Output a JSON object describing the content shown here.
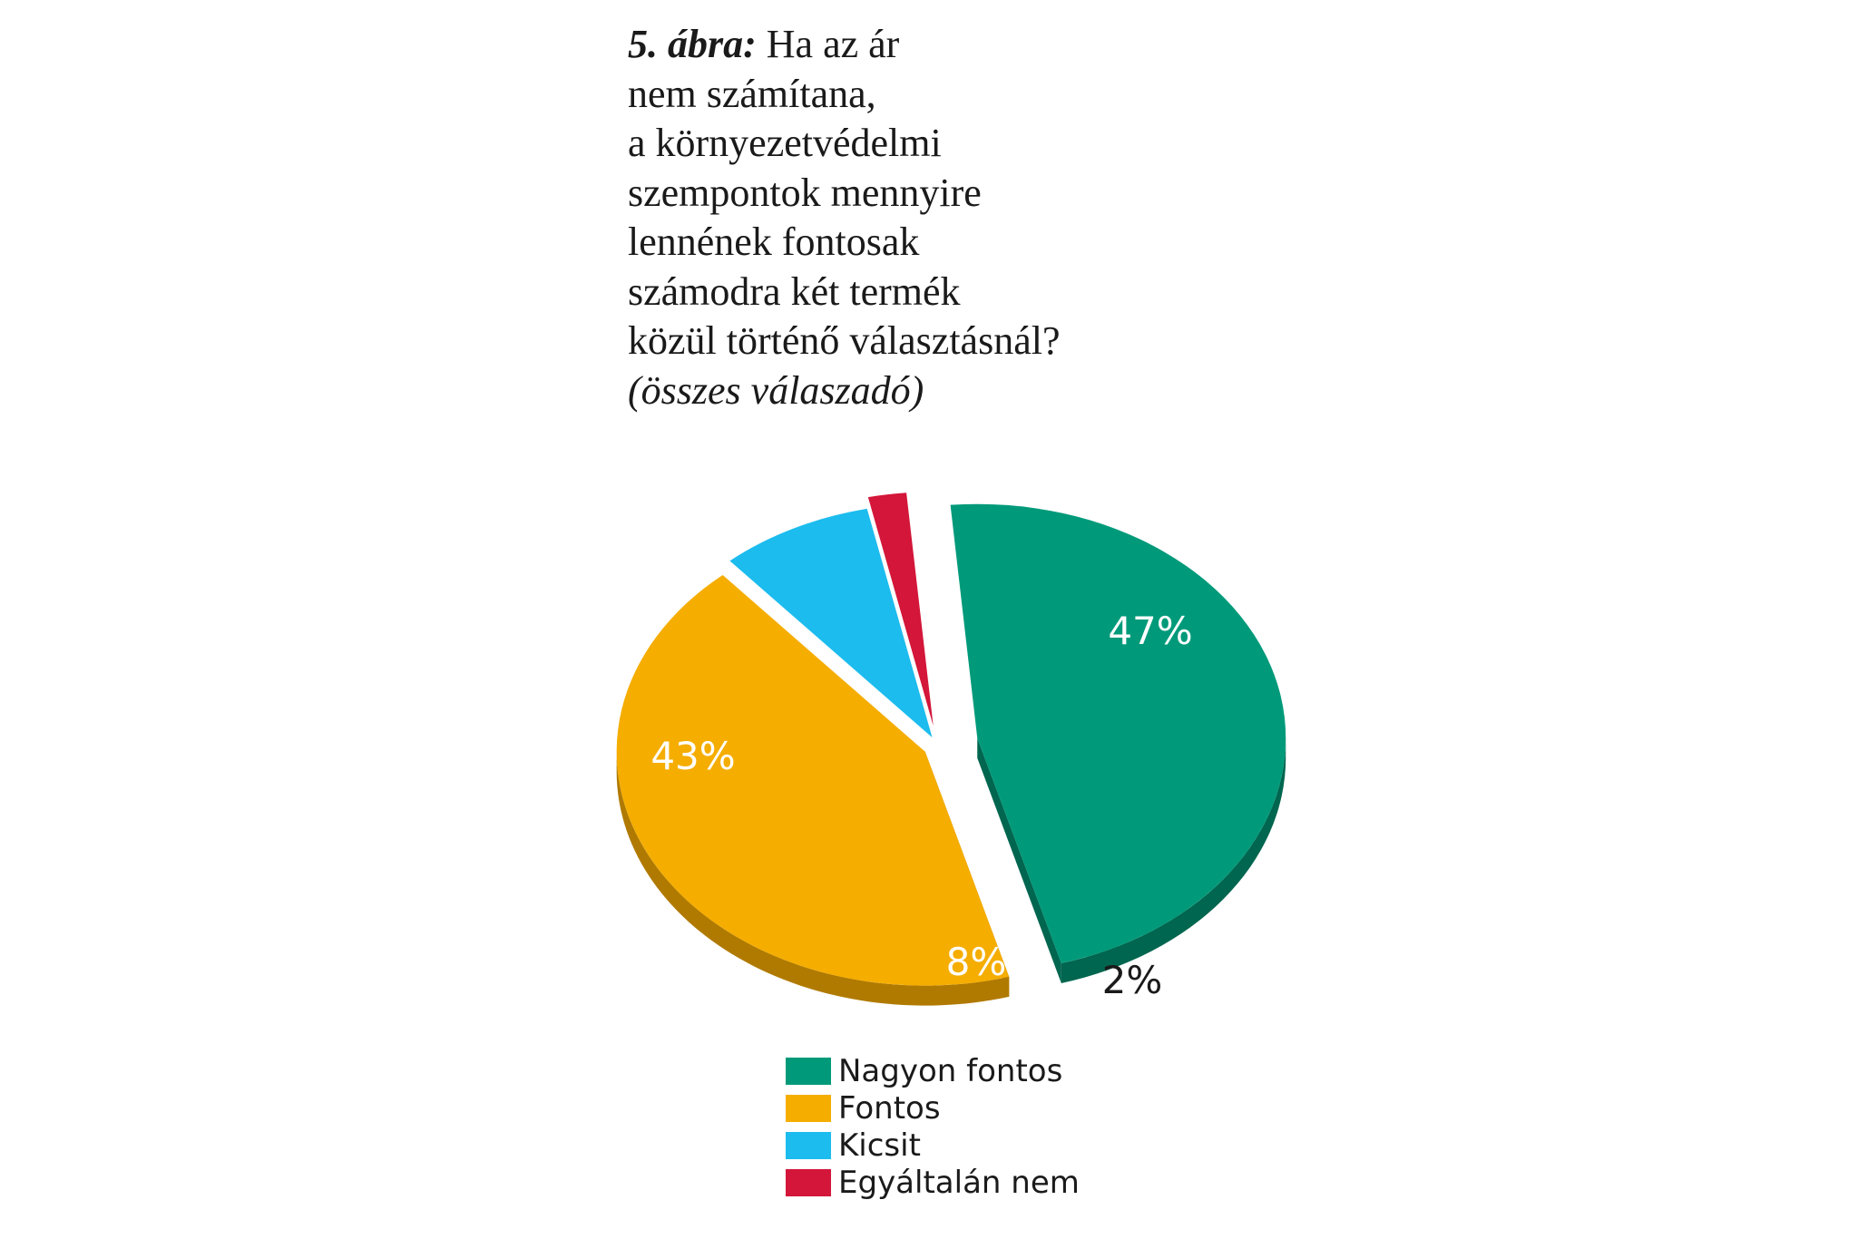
{
  "caption": {
    "label": "5. ábra:",
    "lines": [
      "Ha az ár",
      "nem számítana,",
      "a környezetvédelmi",
      "szempontok mennyire",
      "lennének fontosak",
      "számodra két termék",
      "közül történő választásnál?"
    ],
    "subtitle": "(összes válaszadó)"
  },
  "chart_data": {
    "type": "pie",
    "style": "3d-exploded",
    "categories": [
      "Nagyon fontos",
      "Fontos",
      "Kicsit",
      "Egyáltalán nem"
    ],
    "values": [
      47,
      43,
      8,
      2
    ],
    "unit": "%",
    "data_labels": [
      "47%",
      "43%",
      "8%",
      "2%"
    ],
    "colors": [
      "#009a7a",
      "#f5ad00",
      "#1cbcee",
      "#d31639"
    ],
    "side_colors": [
      "#00664f",
      "#b07a00",
      "#0f7fa6",
      "#8a0c23"
    ],
    "legend_position": "bottom"
  },
  "legend": {
    "items": [
      {
        "label": "Nagyon fontos",
        "color": "#009a7a"
      },
      {
        "label": "Fontos",
        "color": "#f5ad00"
      },
      {
        "label": "Kicsit",
        "color": "#1cbcee"
      },
      {
        "label": "Egyáltalán nem",
        "color": "#d31639"
      }
    ]
  }
}
